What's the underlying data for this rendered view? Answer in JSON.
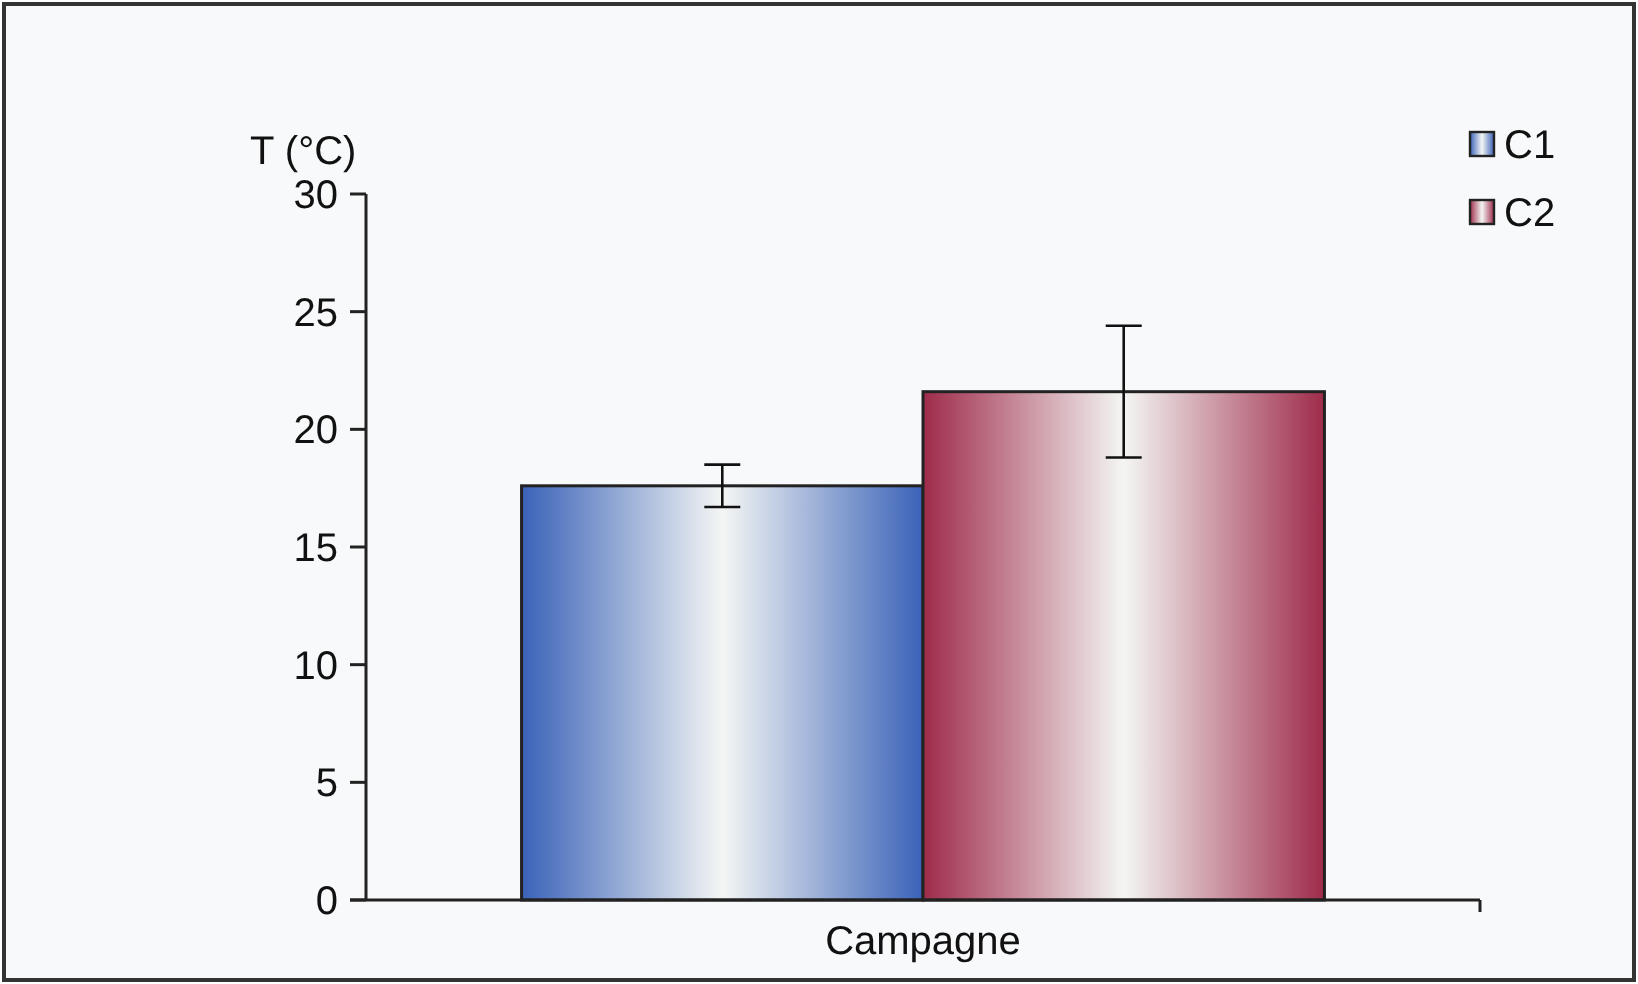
{
  "chart_data": {
    "type": "bar",
    "ylabel": "T (°C)",
    "categories": [
      "Campagne"
    ],
    "series": [
      {
        "name": "C1",
        "color": "#3a62b8",
        "values": [
          17.6
        ],
        "errors": [
          0.9
        ]
      },
      {
        "name": "C2",
        "color": "#9e2b4a",
        "values": [
          21.6
        ],
        "errors": [
          2.8
        ]
      }
    ],
    "ylim": [
      0,
      30
    ],
    "yticks": [
      0,
      5,
      10,
      15,
      20,
      25,
      30
    ],
    "legend": "top right"
  }
}
